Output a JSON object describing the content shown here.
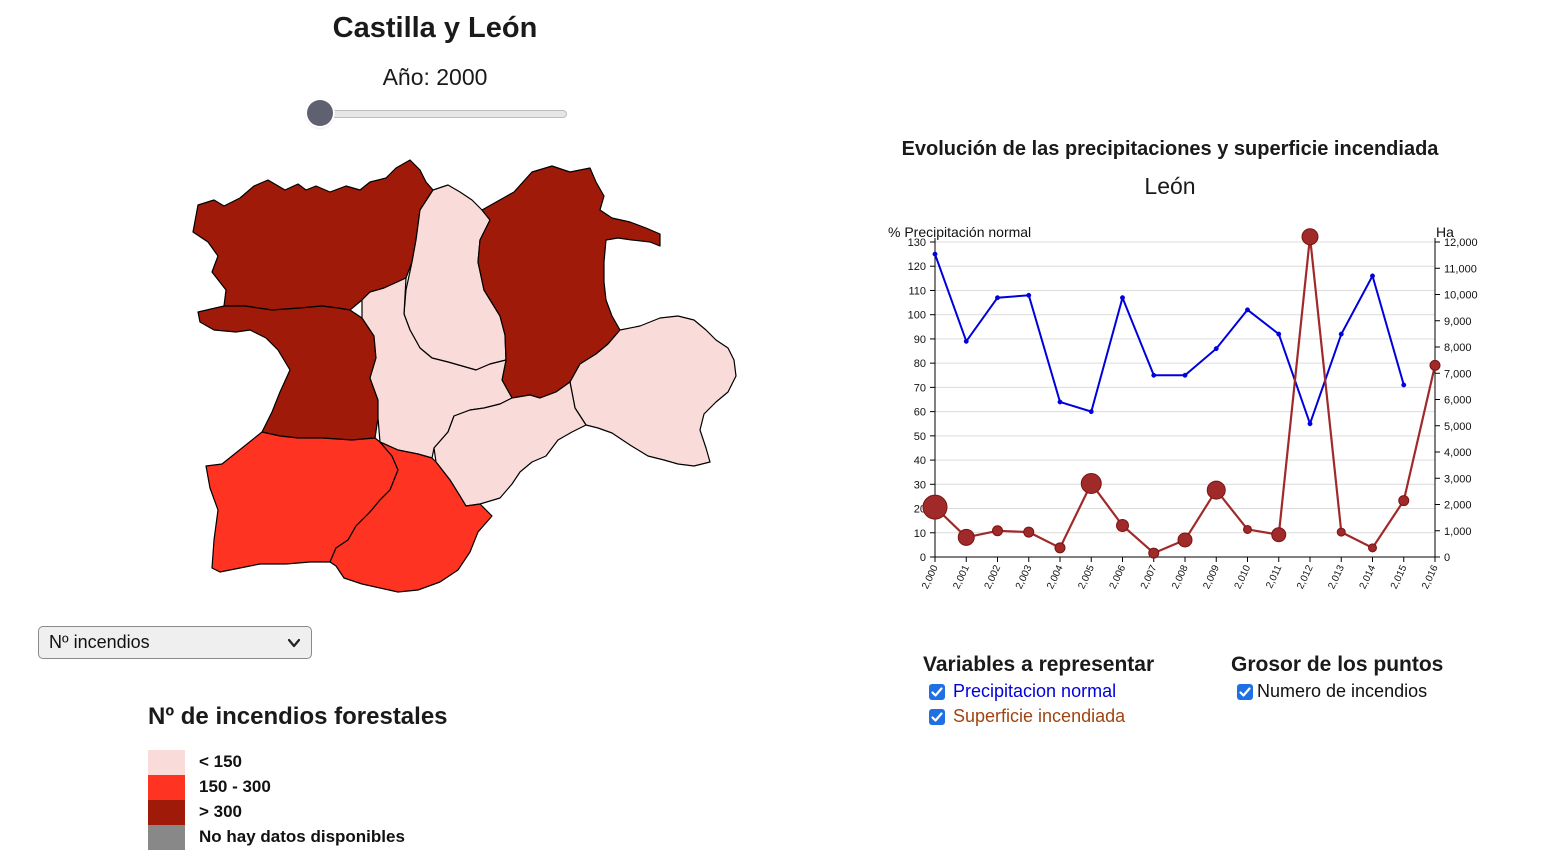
{
  "map_panel": {
    "title": "Castilla y León",
    "year_label": "Año: 2000",
    "slider_value": 2000,
    "variable_select": {
      "selected": "Nº incendios"
    },
    "legend": {
      "title": "Nº de incendios forestales",
      "items": [
        {
          "label": "< 150",
          "color": "#f9dcd9"
        },
        {
          "label": "150 - 300",
          "color": "#ff3322"
        },
        {
          "label": "> 300",
          "color": "#a01a0a"
        },
        {
          "label": "No hay datos disponibles",
          "color": "#888888"
        }
      ]
    },
    "province_colors": {
      "leon": "#a01a0a",
      "palencia": "#f9dcd9",
      "burgos": "#a01a0a",
      "soria": "#f9dcd9",
      "zamora": "#a01a0a",
      "valladolid": "#f9dcd9",
      "segovia": "#f9dcd9",
      "salamanca": "#ff3322",
      "avila": "#ff3322"
    }
  },
  "chart_panel": {
    "title": "Evolución de las precipitaciones y superficie incendiada",
    "subtitle": "León"
  },
  "chart_data": {
    "type": "line",
    "title": "Evolución de las precipitaciones y superficie incendiada",
    "subtitle": "León",
    "ylabel_left": "% Precipitación normal",
    "ylabel_right": "Ha",
    "x": [
      2000,
      2001,
      2002,
      2003,
      2004,
      2005,
      2006,
      2007,
      2008,
      2009,
      2010,
      2011,
      2012,
      2013,
      2014,
      2015,
      2016
    ],
    "x_tick_labels": [
      "2,000",
      "2,001",
      "2,002",
      "2,003",
      "2,004",
      "2,005",
      "2,006",
      "2,007",
      "2,008",
      "2,009",
      "2,010",
      "2,011",
      "2,012",
      "2,013",
      "2,014",
      "2,015",
      "2,016"
    ],
    "ylim_left": [
      0,
      130
    ],
    "ylim_right": [
      0,
      12000
    ],
    "y_left_ticks": [
      "0",
      "10",
      "20",
      "30",
      "40",
      "50",
      "60",
      "70",
      "80",
      "90",
      "100",
      "110",
      "120",
      "130"
    ],
    "y_right_ticks": [
      "0",
      "1,000",
      "2,000",
      "3,000",
      "4,000",
      "5,000",
      "6,000",
      "7,000",
      "8,000",
      "9,000",
      "10,000",
      "11,000",
      "12,000"
    ],
    "grid": true,
    "series": [
      {
        "name": "Precipitacion normal",
        "axis": "left",
        "color": "#0000dd",
        "values": [
          125,
          89,
          107,
          108,
          64,
          60,
          107,
          75,
          75,
          86,
          102,
          92,
          55,
          92,
          116,
          71,
          null
        ]
      },
      {
        "name": "Superficie incendiada",
        "axis": "right",
        "color": "#a0292a",
        "values": [
          1900,
          750,
          1000,
          950,
          350,
          2800,
          1200,
          150,
          650,
          2550,
          1050,
          850,
          12200,
          950,
          350,
          2150,
          7300
        ],
        "point_size_by": "Numero de incendios",
        "point_sizes": [
          12,
          8,
          5,
          5,
          5,
          10,
          6,
          5,
          7,
          9,
          4,
          7,
          8,
          4,
          4,
          5,
          5
        ]
      }
    ]
  },
  "controls": {
    "variables_title": "Variables a representar",
    "variables": [
      {
        "label": "Precipitacion normal",
        "checked": true,
        "color": "#0000dd"
      },
      {
        "label": "Superficie incendiada",
        "checked": true,
        "color": "#a04510"
      }
    ],
    "point_size_title": "Grosor de los puntos",
    "point_size_options": [
      {
        "label": "Numero de incendios",
        "checked": true,
        "color": "#111111"
      }
    ]
  },
  "icons": {
    "select_arrow": "chevron-down-icon",
    "checkbox": "check-icon"
  }
}
